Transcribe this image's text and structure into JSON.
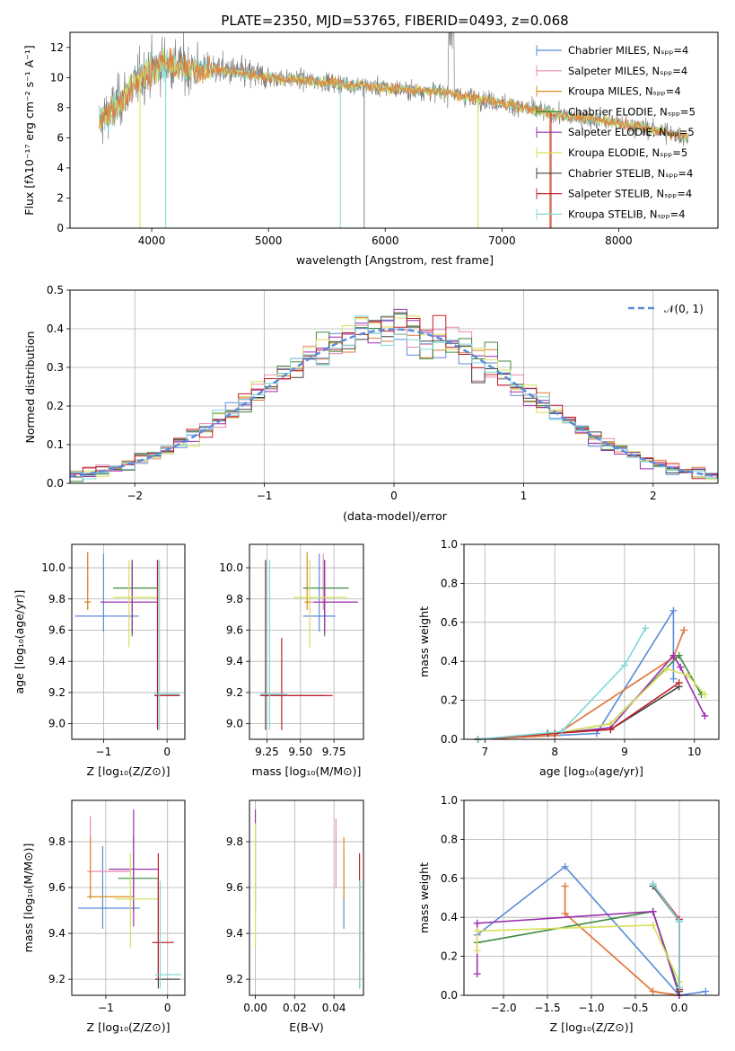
{
  "title": "PLATE=2350, MJD=53765, FIBERID=0493, z=0.068",
  "colors": {
    "Chabrier MILES": "#5b8bd9",
    "Salpeter MILES": "#e98ab0",
    "Kroupa MILES": "#d98c1f",
    "Chabrier ELODIE": "#3f8a3f",
    "Salpeter ELODIE": "#9b2fb0",
    "Kroupa ELODIE": "#d8e05a",
    "Chabrier STELIB": "#444444",
    "Salpeter STELIB": "#c0202a",
    "Kroupa STELIB": "#7fd8d8",
    "data": "#808080",
    "fit_orange": "#e07a3a",
    "normal": "#5b8bd9"
  },
  "chart_data": [
    {
      "type": "line",
      "id": "spectrum",
      "title": "PLATE=2350, MJD=53765, FIBERID=0493, z=0.068",
      "xlabel": "wavelength [Angstrom, rest frame]",
      "ylabel": "Flux [fλ10⁻¹⁷ erg cm⁻² s⁻¹ A⁻¹]",
      "xlim": [
        3300,
        8850
      ],
      "ylim": [
        0,
        13
      ],
      "xticks": [
        "4000",
        "5000",
        "6000",
        "7000",
        "8000"
      ],
      "yticks": [
        "0",
        "2",
        "4",
        "6",
        "8",
        "10",
        "12"
      ],
      "legend_position": "top-right",
      "series": [
        {
          "name": "Chabrier MILES, Nₛₚₚ=4"
        },
        {
          "name": "Salpeter MILES, Nₛₚₚ=4"
        },
        {
          "name": "Kroupa MILES, Nₛₚₚ=4"
        },
        {
          "name": "Chabrier ELODIE, Nₛₚₚ=5"
        },
        {
          "name": "Salpeter ELODIE, Nₛₚₚ=5"
        },
        {
          "name": "Kroupa ELODIE, Nₛₚₚ=5"
        },
        {
          "name": "Chabrier STELIB, Nₛₚₚ=4"
        },
        {
          "name": "Salpeter STELIB, Nₛₚₚ=4"
        },
        {
          "name": "Kroupa STELIB, Nₛₚₚ=4"
        }
      ],
      "continuum": [
        [
          3550,
          7.0
        ],
        [
          3700,
          8.2
        ],
        [
          3900,
          10.0
        ],
        [
          4100,
          11.0
        ],
        [
          4300,
          10.6
        ],
        [
          4600,
          10.5
        ],
        [
          5000,
          10.0
        ],
        [
          5500,
          9.7
        ],
        [
          6000,
          9.3
        ],
        [
          6500,
          9.0
        ],
        [
          7000,
          8.3
        ],
        [
          7500,
          7.5
        ],
        [
          8000,
          7.0
        ],
        [
          8500,
          6.2
        ],
        [
          8600,
          6.0
        ]
      ]
    },
    {
      "type": "line",
      "id": "residual-hist",
      "xlabel": "(data-model)/error",
      "ylabel": "Normed distribution",
      "xlim": [
        -2.5,
        2.5
      ],
      "ylim": [
        0,
        0.5
      ],
      "xticks": [
        "−2",
        "−1",
        "0",
        "1",
        "2"
      ],
      "yticks": [
        "0.0",
        "0.1",
        "0.2",
        "0.3",
        "0.4",
        "0.5"
      ],
      "legend": "𝒩(0, 1)",
      "bin_edges": [
        -2.5,
        -2.4,
        -2.3,
        -2.2,
        -2.1,
        -2.0,
        -1.9,
        -1.8,
        -1.7,
        -1.6,
        -1.5,
        -1.4,
        -1.3,
        -1.2,
        -1.1,
        -1.0,
        -0.9,
        -0.8,
        -0.7,
        -0.6,
        -0.5,
        -0.4,
        -0.3,
        -0.2,
        -0.1,
        0.0,
        0.1,
        0.2,
        0.3,
        0.4,
        0.5,
        0.6,
        0.7,
        0.8,
        0.9,
        1.0,
        1.1,
        1.2,
        1.3,
        1.4,
        1.5,
        1.6,
        1.7,
        1.8,
        1.9,
        2.0,
        2.1,
        2.2,
        2.3,
        2.4,
        2.5
      ]
    },
    {
      "type": "scatter",
      "id": "age-vs-Z",
      "xlabel": "Z [log₁₀(Z/Z⊙)]",
      "ylabel": "age  [log₁₀(age/yr)]",
      "xlim": [
        -1.5,
        0.28
      ],
      "ylim": [
        8.9,
        10.15
      ],
      "xticks": [
        "−1",
        "0"
      ],
      "yticks": [
        "9.0",
        "9.2",
        "9.4",
        "9.6",
        "9.8",
        "10.0"
      ],
      "points": [
        {
          "name": "Chabrier MILES",
          "x": -1.0,
          "xlo": -1.45,
          "xhi": -0.45,
          "y": 9.69,
          "ylo": 9.59,
          "yhi": 10.09
        },
        {
          "name": "Salpeter MILES",
          "x": -1.25,
          "xlo": -1.3,
          "xhi": -1.2,
          "y": 9.78,
          "ylo": 9.73,
          "yhi": 10.1
        },
        {
          "name": "Kroupa MILES",
          "x": -1.25,
          "xlo": -1.3,
          "xhi": -1.2,
          "y": 9.78,
          "ylo": 9.73,
          "yhi": 10.1
        },
        {
          "name": "Chabrier ELODIE",
          "x": -0.55,
          "xlo": -0.85,
          "xhi": -0.15,
          "y": 9.87,
          "ylo": 9.56,
          "yhi": 10.05
        },
        {
          "name": "Salpeter ELODIE",
          "x": -0.55,
          "xlo": -1.05,
          "xhi": -0.15,
          "y": 9.78,
          "ylo": 9.58,
          "yhi": 10.05
        },
        {
          "name": "Kroupa ELODIE",
          "x": -0.6,
          "xlo": -0.85,
          "xhi": -0.15,
          "y": 9.81,
          "ylo": 9.49,
          "yhi": 10.05
        },
        {
          "name": "Chabrier STELIB",
          "x": -0.15,
          "xlo": -0.2,
          "xhi": 0.2,
          "y": 9.18,
          "ylo": 8.96,
          "yhi": 10.05
        },
        {
          "name": "Salpeter STELIB",
          "x": -0.15,
          "xlo": -0.2,
          "xhi": 0.2,
          "y": 9.18,
          "ylo": 8.96,
          "yhi": 10.05
        },
        {
          "name": "Kroupa STELIB",
          "x": -0.12,
          "xlo": -0.2,
          "xhi": 0.2,
          "y": 9.19,
          "ylo": 8.96,
          "yhi": 10.05
        }
      ]
    },
    {
      "type": "scatter",
      "id": "age-vs-mass",
      "xlabel": "mass [log₁₀(M/M⊙)]",
      "ylabel": "",
      "xlim": [
        9.12,
        9.97
      ],
      "ylim": [
        8.9,
        10.15
      ],
      "xticks": [
        "9.25",
        "9.50",
        "9.75"
      ],
      "yticks": [
        "9.0",
        "9.2",
        "9.4",
        "9.6",
        "9.8",
        "10.0"
      ],
      "points": [
        {
          "name": "Chabrier MILES",
          "x": 9.64,
          "xlo": 9.52,
          "xhi": 9.76,
          "y": 9.69,
          "ylo": 9.59,
          "yhi": 10.09
        },
        {
          "name": "Salpeter MILES",
          "x": 9.67,
          "xlo": 9.55,
          "xhi": 9.9,
          "y": 9.78,
          "ylo": 9.73,
          "yhi": 10.09
        },
        {
          "name": "Kroupa MILES",
          "x": 9.55,
          "xlo": 9.53,
          "xhi": 9.57,
          "y": 9.78,
          "ylo": 9.73,
          "yhi": 10.1
        },
        {
          "name": "Chabrier ELODIE",
          "x": 9.68,
          "xlo": 9.52,
          "xhi": 9.86,
          "y": 9.87,
          "ylo": 9.56,
          "yhi": 10.05
        },
        {
          "name": "Salpeter ELODIE",
          "x": 9.68,
          "xlo": 9.6,
          "xhi": 9.93,
          "y": 9.78,
          "ylo": 9.58,
          "yhi": 10.05
        },
        {
          "name": "Kroupa ELODIE",
          "x": 9.57,
          "xlo": 9.45,
          "xhi": 9.85,
          "y": 9.81,
          "ylo": 9.49,
          "yhi": 10.05
        },
        {
          "name": "Chabrier STELIB",
          "x": 9.24,
          "xlo": 9.2,
          "xhi": 9.68,
          "y": 9.18,
          "ylo": 8.96,
          "yhi": 10.05
        },
        {
          "name": "Salpeter STELIB",
          "x": 9.36,
          "xlo": 9.2,
          "xhi": 9.74,
          "y": 9.18,
          "ylo": 8.96,
          "yhi": 9.55
        },
        {
          "name": "Kroupa STELIB",
          "x": 9.27,
          "xlo": 9.2,
          "xhi": 9.4,
          "y": 9.19,
          "ylo": 8.96,
          "yhi": 10.05
        }
      ]
    },
    {
      "type": "line",
      "id": "mass-weight-vs-age",
      "xlabel": "age  [log₁₀(age/yr)]",
      "ylabel": "mass weight",
      "xlim": [
        6.7,
        10.35
      ],
      "ylim": [
        0,
        1.0
      ],
      "xticks": [
        "7",
        "8",
        "9",
        "10"
      ],
      "yticks": [
        "0.0",
        "0.2",
        "0.4",
        "0.6",
        "0.8",
        "1.0"
      ],
      "series": [
        {
          "name": "Chabrier MILES",
          "x": [
            6.9,
            8.6,
            9.7,
            9.7
          ],
          "y": [
            0.0,
            0.03,
            0.66,
            0.31
          ]
        },
        {
          "name": "Salpeter MILES",
          "x": [
            6.9,
            8.0,
            9.7,
            9.85
          ],
          "y": [
            0.0,
            0.02,
            0.42,
            0.56
          ]
        },
        {
          "name": "Kroupa MILES",
          "x": [
            6.9,
            8.0,
            9.7,
            9.85
          ],
          "y": [
            0.0,
            0.02,
            0.42,
            0.56
          ]
        },
        {
          "name": "Chabrier ELODIE",
          "x": [
            6.9,
            8.0,
            8.8,
            9.78,
            10.1
          ],
          "y": [
            0.0,
            0.03,
            0.08,
            0.43,
            0.23
          ]
        },
        {
          "name": "Salpeter ELODIE",
          "x": [
            6.9,
            8.0,
            8.8,
            9.7,
            9.8,
            10.15
          ],
          "y": [
            0.0,
            0.03,
            0.06,
            0.43,
            0.37,
            0.12
          ]
        },
        {
          "name": "Kroupa ELODIE",
          "x": [
            6.9,
            8.0,
            8.8,
            9.6,
            9.9,
            10.15
          ],
          "y": [
            0.0,
            0.03,
            0.08,
            0.36,
            0.33,
            0.23
          ]
        },
        {
          "name": "Chabrier STELIB",
          "x": [
            6.9,
            7.9,
            8.8,
            9.78
          ],
          "y": [
            0.0,
            0.03,
            0.05,
            0.27
          ]
        },
        {
          "name": "Salpeter STELIB",
          "x": [
            6.9,
            8.0,
            8.8,
            9.78
          ],
          "y": [
            0.0,
            0.03,
            0.05,
            0.29
          ]
        },
        {
          "name": "Kroupa STELIB",
          "x": [
            6.9,
            8.1,
            9.0,
            9.3
          ],
          "y": [
            0.0,
            0.04,
            0.38,
            0.57
          ]
        }
      ]
    },
    {
      "type": "scatter",
      "id": "mass-vs-Z",
      "xlabel": "Z [log₁₀(Z/Z⊙)]",
      "ylabel": "mass [log₁₀(M/M⊙)]",
      "xlim": [
        -1.55,
        0.28
      ],
      "ylim": [
        9.13,
        9.98
      ],
      "xticks": [
        "−1",
        "0"
      ],
      "yticks": [
        "9.2",
        "9.4",
        "9.6",
        "9.8"
      ],
      "points": [
        {
          "name": "Chabrier MILES",
          "x": -1.05,
          "xlo": -1.45,
          "xhi": -0.45,
          "y": 9.51,
          "ylo": 9.42,
          "yhi": 9.78
        },
        {
          "name": "Salpeter MILES",
          "x": -1.25,
          "xlo": -1.3,
          "xhi": -0.6,
          "y": 9.67,
          "ylo": 9.56,
          "yhi": 9.91
        },
        {
          "name": "Kroupa MILES",
          "x": -1.25,
          "xlo": -1.3,
          "xhi": -0.55,
          "y": 9.56,
          "ylo": 9.55,
          "yhi": 9.82
        },
        {
          "name": "Chabrier ELODIE",
          "x": -0.55,
          "xlo": -0.8,
          "xhi": -0.15,
          "y": 9.64,
          "ylo": 9.5,
          "yhi": 9.82
        },
        {
          "name": "Salpeter ELODIE",
          "x": -0.55,
          "xlo": -0.95,
          "xhi": -0.15,
          "y": 9.68,
          "ylo": 9.43,
          "yhi": 9.94
        },
        {
          "name": "Kroupa ELODIE",
          "x": -0.6,
          "xlo": -0.85,
          "xhi": -0.15,
          "y": 9.55,
          "ylo": 9.34,
          "yhi": 9.75
        },
        {
          "name": "Chabrier STELIB",
          "x": -0.15,
          "xlo": -0.2,
          "xhi": 0.2,
          "y": 9.2,
          "ylo": 9.16,
          "yhi": 9.64
        },
        {
          "name": "Salpeter STELIB",
          "x": -0.15,
          "xlo": -0.25,
          "xhi": 0.1,
          "y": 9.36,
          "ylo": 9.2,
          "yhi": 9.75
        },
        {
          "name": "Kroupa STELIB",
          "x": -0.12,
          "xlo": -0.2,
          "xhi": 0.22,
          "y": 9.22,
          "ylo": 9.16,
          "yhi": 9.63
        }
      ]
    },
    {
      "type": "scatter",
      "id": "mass-vs-ebv",
      "xlabel": "E(B-V)",
      "ylabel": "",
      "xlim": [
        -0.003,
        0.055
      ],
      "ylim": [
        9.13,
        9.98
      ],
      "xticks": [
        "0.00",
        "0.02",
        "0.04"
      ],
      "yticks": [
        "9.2",
        "9.4",
        "9.6",
        "9.8"
      ],
      "points": [
        {
          "name": "Chabrier MILES",
          "x": 0.045,
          "y": 9.5,
          "ylo": 9.42,
          "yhi": 9.75
        },
        {
          "name": "Salpeter MILES",
          "x": 0.041,
          "y": 9.78,
          "ylo": 9.6,
          "yhi": 9.9
        },
        {
          "name": "Kroupa MILES",
          "x": 0.045,
          "y": 9.65,
          "ylo": 9.55,
          "yhi": 9.82
        },
        {
          "name": "Chabrier ELODIE",
          "x": 0.0,
          "y": 9.6,
          "ylo": 9.5,
          "yhi": 9.8
        },
        {
          "name": "Salpeter ELODIE",
          "x": 0.0,
          "y": 9.87,
          "ylo": 9.8,
          "yhi": 9.94
        },
        {
          "name": "Kroupa ELODIE",
          "x": 0.0,
          "y": 9.55,
          "ylo": 9.34,
          "yhi": 9.88
        },
        {
          "name": "Chabrier STELIB",
          "x": 0.053,
          "y": 9.36,
          "ylo": 9.16,
          "yhi": 9.62
        },
        {
          "name": "Salpeter STELIB",
          "x": 0.053,
          "y": 9.6,
          "ylo": 9.3,
          "yhi": 9.75
        },
        {
          "name": "Kroupa STELIB",
          "x": 0.053,
          "y": 9.4,
          "ylo": 9.16,
          "yhi": 9.63
        }
      ]
    },
    {
      "type": "line",
      "id": "mass-weight-vs-Z",
      "xlabel": "Z [log₁₀(Z/Z⊙)]",
      "ylabel": "mass weight",
      "xlim": [
        -2.45,
        0.45
      ],
      "ylim": [
        0,
        1.0
      ],
      "xticks": [
        "−2.0",
        "−1.5",
        "−1.0",
        "−0.5",
        "0.0"
      ],
      "yticks": [
        "0.0",
        "0.2",
        "0.4",
        "0.6",
        "0.8",
        "1.0"
      ],
      "series": [
        {
          "name": "Chabrier MILES",
          "x": [
            -2.3,
            -1.3,
            0.0,
            0.3
          ],
          "y": [
            0.31,
            0.66,
            0.0,
            0.02
          ]
        },
        {
          "name": "Salpeter MILES",
          "x": [
            -1.3,
            -1.3,
            -0.3,
            0.0
          ],
          "y": [
            0.56,
            0.42,
            0.02,
            0.0
          ]
        },
        {
          "name": "Kroupa MILES",
          "x": [
            -1.3,
            -1.3,
            -0.3,
            0.0
          ],
          "y": [
            0.56,
            0.42,
            0.02,
            0.0
          ]
        },
        {
          "name": "Chabrier ELODIE",
          "x": [
            -2.3,
            -0.3,
            0.0
          ],
          "y": [
            0.27,
            0.43,
            0.02
          ]
        },
        {
          "name": "Salpeter ELODIE",
          "x": [
            -2.3,
            -2.3,
            -0.3,
            0.0
          ],
          "y": [
            0.11,
            0.37,
            0.43,
            0.0
          ]
        },
        {
          "name": "Kroupa ELODIE",
          "x": [
            -2.3,
            -2.3,
            -0.3,
            0.0
          ],
          "y": [
            0.23,
            0.33,
            0.36,
            0.07
          ]
        },
        {
          "name": "Chabrier STELIB",
          "x": [
            -0.3,
            0.0,
            0.0
          ],
          "y": [
            0.56,
            0.38,
            0.02
          ]
        },
        {
          "name": "Salpeter STELIB",
          "x": [
            -0.3,
            0.0,
            0.0
          ],
          "y": [
            0.57,
            0.39,
            0.03
          ]
        },
        {
          "name": "Kroupa STELIB",
          "x": [
            -0.3,
            0.0,
            0.0
          ],
          "y": [
            0.57,
            0.38,
            0.04
          ]
        }
      ]
    }
  ]
}
